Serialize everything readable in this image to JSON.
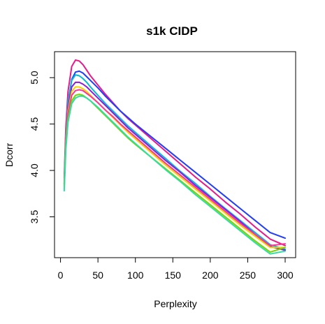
{
  "chart_data": {
    "type": "line",
    "title": "s1k CIDP",
    "xlabel": "Perplexity",
    "ylabel": "Dcorr",
    "xlim": [
      -8,
      314
    ],
    "ylim": [
      3.06,
      5.28
    ],
    "x_ticks": [
      0,
      50,
      100,
      150,
      200,
      250,
      300
    ],
    "y_ticks": [
      3.5,
      4.0,
      4.5,
      5.0
    ],
    "x_tick_labels": [
      "0",
      "50",
      "100",
      "150",
      "200",
      "250",
      "300"
    ],
    "y_tick_labels": [
      "3.5",
      "4.0",
      "4.5",
      "5.0"
    ],
    "grid": false,
    "legend": "none",
    "x": [
      5,
      7,
      10,
      15,
      20,
      25,
      30,
      35,
      40,
      50,
      60,
      70,
      80,
      90,
      100,
      120,
      140,
      160,
      180,
      200,
      220,
      240,
      260,
      280,
      300
    ],
    "series": [
      {
        "color": "#e8198b",
        "values": [
          3.92,
          4.45,
          4.85,
          5.12,
          5.19,
          5.18,
          5.14,
          5.08,
          5.02,
          4.92,
          4.82,
          4.73,
          4.64,
          4.56,
          4.49,
          4.35,
          4.21,
          4.07,
          3.93,
          3.8,
          3.66,
          3.53,
          3.39,
          3.26,
          3.19
        ]
      },
      {
        "color": "#1f3cff",
        "values": [
          3.85,
          4.35,
          4.72,
          4.98,
          5.06,
          5.07,
          5.05,
          5.01,
          4.97,
          4.89,
          4.8,
          4.72,
          4.64,
          4.57,
          4.5,
          4.37,
          4.24,
          4.11,
          3.98,
          3.85,
          3.72,
          3.59,
          3.46,
          3.33,
          3.27
        ]
      },
      {
        "color": "#00bcd4",
        "values": [
          3.88,
          4.38,
          4.74,
          4.97,
          5.03,
          5.02,
          4.99,
          4.95,
          4.9,
          4.81,
          4.72,
          4.64,
          4.56,
          4.48,
          4.41,
          4.27,
          4.13,
          3.99,
          3.86,
          3.72,
          3.59,
          3.46,
          3.33,
          3.2,
          3.15
        ]
      },
      {
        "color": "#8b1ad9",
        "values": [
          3.86,
          4.34,
          4.68,
          4.9,
          4.95,
          4.95,
          4.93,
          4.9,
          4.86,
          4.78,
          4.7,
          4.62,
          4.54,
          4.46,
          4.39,
          4.25,
          4.11,
          3.98,
          3.84,
          3.71,
          3.58,
          3.45,
          3.31,
          3.18,
          3.14
        ]
      },
      {
        "color": "#f4d200",
        "values": [
          3.84,
          4.32,
          4.64,
          4.85,
          4.9,
          4.9,
          4.88,
          4.85,
          4.81,
          4.73,
          4.65,
          4.57,
          4.49,
          4.41,
          4.34,
          4.2,
          4.06,
          3.93,
          3.8,
          3.67,
          3.54,
          3.41,
          3.29,
          3.17,
          3.17
        ]
      },
      {
        "color": "#ff3399",
        "values": [
          3.83,
          4.3,
          4.61,
          4.81,
          4.86,
          4.87,
          4.86,
          4.83,
          4.8,
          4.73,
          4.65,
          4.58,
          4.5,
          4.43,
          4.36,
          4.22,
          4.08,
          3.95,
          3.82,
          3.69,
          3.56,
          3.43,
          3.31,
          3.19,
          3.21
        ]
      },
      {
        "color": "#7fd100",
        "values": [
          3.8,
          4.25,
          4.55,
          4.75,
          4.81,
          4.82,
          4.81,
          4.78,
          4.75,
          4.67,
          4.59,
          4.51,
          4.43,
          4.35,
          4.28,
          4.15,
          4.02,
          3.89,
          3.76,
          3.63,
          3.5,
          3.37,
          3.24,
          3.12,
          3.17
        ]
      },
      {
        "color": "#2de0a0",
        "values": [
          3.78,
          4.22,
          4.52,
          4.72,
          4.78,
          4.8,
          4.8,
          4.78,
          4.75,
          4.68,
          4.6,
          4.52,
          4.44,
          4.36,
          4.29,
          4.15,
          4.01,
          3.88,
          3.74,
          3.61,
          3.48,
          3.35,
          3.22,
          3.1,
          3.13
        ]
      }
    ]
  }
}
